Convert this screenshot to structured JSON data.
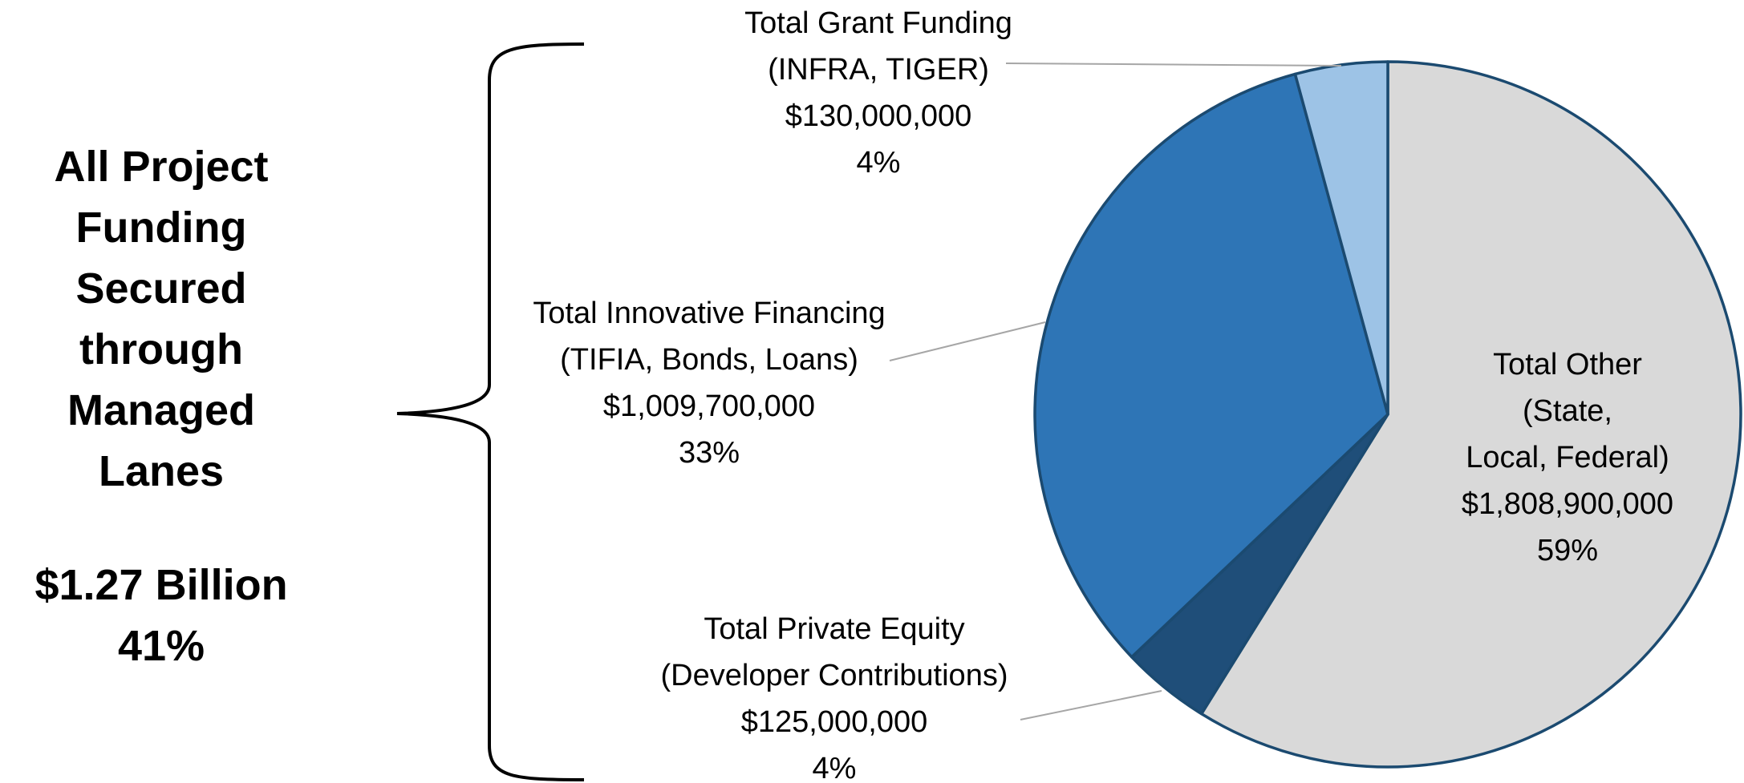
{
  "chart_data": {
    "type": "pie",
    "annotations": [
      "All Project\nFunding\nSecured\nthrough\nManaged\nLanes",
      "$1.27 Billion\n41%"
    ],
    "categories": [
      "Total Other (State,\nLocal, Federal)",
      "Total Private Equity\n(Developer Contributions)",
      "Total Innovative Financing\n(TIFIA, Bonds, Loans)",
      "Total Grant Funding\n(INFRA, TIGER)"
    ],
    "values": [
      1808900000,
      125000000,
      1009700000,
      130000000
    ],
    "value_labels": [
      "$1,808,900,000",
      "$125,000,000",
      "$1,009,700,000",
      "$130,000,000"
    ],
    "percents": [
      59,
      4,
      33,
      4
    ],
    "percent_labels": [
      "59%",
      "4%",
      "33%",
      "4%"
    ],
    "colors": [
      "#d9d9d9",
      "#1f4e79",
      "#2e75b6",
      "#9dc3e6"
    ],
    "edge_color": "#1b4a70"
  }
}
